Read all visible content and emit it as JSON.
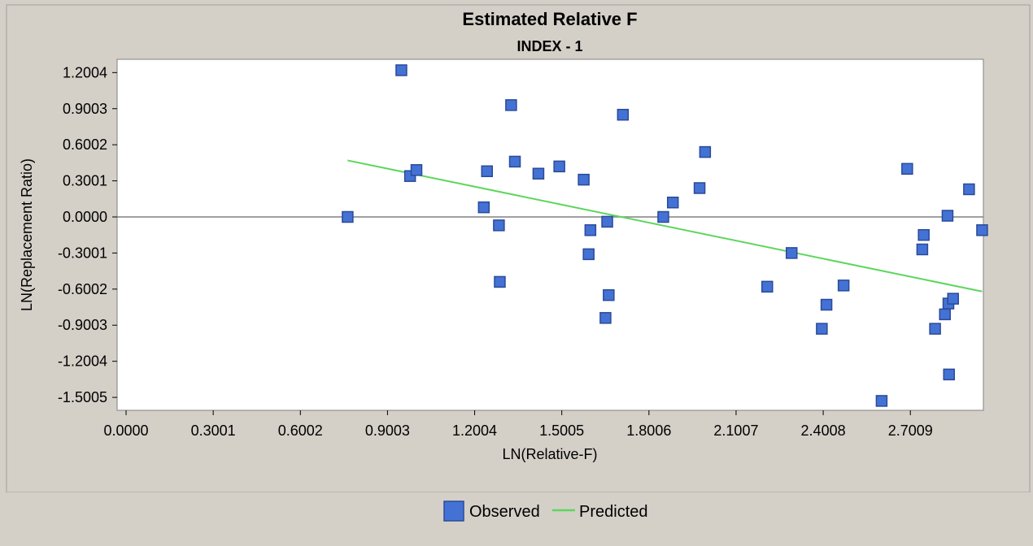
{
  "chart_data": {
    "type": "scatter",
    "title": "Estimated Relative F",
    "subtitle": "INDEX - 1",
    "xlabel": "LN(Relative-F)",
    "ylabel": "LN(Replacement Ratio)",
    "xlim": [
      0.0,
      3.1
    ],
    "ylim": [
      -1.6,
      1.3
    ],
    "x_ticks": [
      "0.0000",
      "0.3001",
      "0.6002",
      "0.9003",
      "1.2004",
      "1.5005",
      "1.8006",
      "2.1007",
      "2.4008",
      "2.7009"
    ],
    "y_ticks": [
      "1.2004",
      "0.9003",
      "0.6002",
      "0.3001",
      "0.0000",
      "-0.3001",
      "-0.6002",
      "-0.9003",
      "-1.2004",
      "-1.5005"
    ],
    "grid": false,
    "zero_line": true,
    "legend_position": "bottom",
    "series": [
      {
        "name": "Observed",
        "kind": "points",
        "color": "#4472d4",
        "x": [
          0.763,
          0.948,
          0.978,
          1.0,
          1.232,
          1.243,
          1.284,
          1.287,
          1.326,
          1.339,
          1.42,
          1.492,
          1.576,
          1.593,
          1.599,
          1.651,
          1.657,
          1.662,
          1.711,
          1.85,
          1.883,
          1.975,
          1.994,
          2.208,
          2.292,
          2.396,
          2.412,
          2.471,
          2.602,
          2.69,
          2.742,
          2.747,
          2.786,
          2.82,
          2.829,
          2.832,
          2.834,
          2.848,
          2.903,
          2.948
        ],
        "y": [
          0.0,
          1.22,
          0.34,
          0.39,
          0.08,
          0.38,
          -0.07,
          -0.54,
          0.93,
          0.46,
          0.36,
          0.42,
          0.31,
          -0.31,
          -0.11,
          -0.84,
          -0.04,
          -0.65,
          0.85,
          0.0,
          0.12,
          0.24,
          0.54,
          -0.58,
          -0.3,
          -0.93,
          -0.73,
          -0.57,
          -1.53,
          0.4,
          -0.27,
          -0.15,
          -0.93,
          -0.81,
          0.01,
          -0.72,
          -1.31,
          -0.68,
          0.23,
          -0.11
        ]
      },
      {
        "name": "Predicted",
        "kind": "line",
        "color": "#5cd65c",
        "x": [
          0.763,
          2.948
        ],
        "y": [
          0.47,
          -0.62
        ]
      }
    ]
  }
}
